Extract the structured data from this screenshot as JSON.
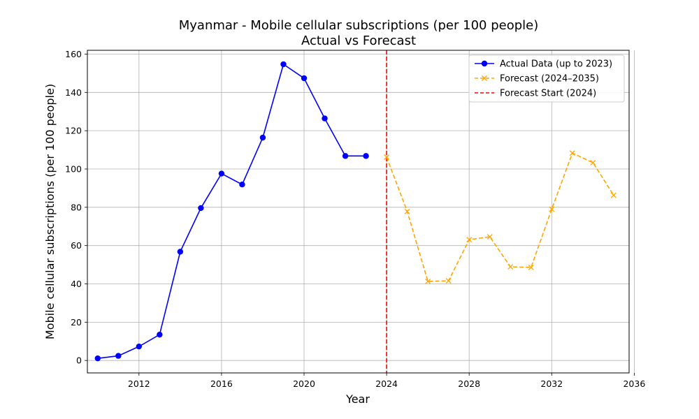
{
  "chart_data": {
    "type": "line",
    "title": "Myanmar - Mobile cellular subscriptions (per 100 people)",
    "subtitle": "Actual vs Forecast",
    "xlabel": "Year",
    "ylabel": "Mobile cellular subscriptions (per 100 people)",
    "xlim": [
      2009.5,
      2035.75
    ],
    "ylim": [
      -6.5,
      162
    ],
    "x_ticks": [
      2012,
      2016,
      2020,
      2024,
      2028,
      2032,
      2036
    ],
    "y_ticks": [
      0,
      20,
      40,
      60,
      80,
      100,
      120,
      140,
      160
    ],
    "grid": true,
    "legend_position": "top-right",
    "series": [
      {
        "name": "Actual Data (up to 2023)",
        "color": "#0000ff",
        "line_style": "solid",
        "marker": "circle",
        "x": [
          2010,
          2011,
          2012,
          2013,
          2014,
          2015,
          2016,
          2017,
          2018,
          2019,
          2020,
          2021,
          2022,
          2023
        ],
        "values": [
          1.1,
          2.4,
          7.3,
          13.5,
          56.8,
          79.6,
          97.6,
          91.9,
          116.4,
          154.7,
          147.4,
          126.4,
          106.8,
          106.8
        ]
      },
      {
        "name": "Forecast (2024–2035)",
        "color": "#ffa500",
        "line_style": "dashed",
        "marker": "x",
        "x": [
          2024,
          2025,
          2026,
          2027,
          2028,
          2029,
          2030,
          2031,
          2032,
          2033,
          2034,
          2035
        ],
        "values": [
          106.2,
          77.8,
          41.3,
          41.6,
          63.1,
          64.6,
          48.9,
          48.6,
          79.0,
          108.3,
          103.3,
          86.3
        ]
      }
    ],
    "reference_lines": [
      {
        "name": "Forecast Start (2024)",
        "x": 2024,
        "color": "#ff0000",
        "line_style": "dashed"
      }
    ]
  }
}
